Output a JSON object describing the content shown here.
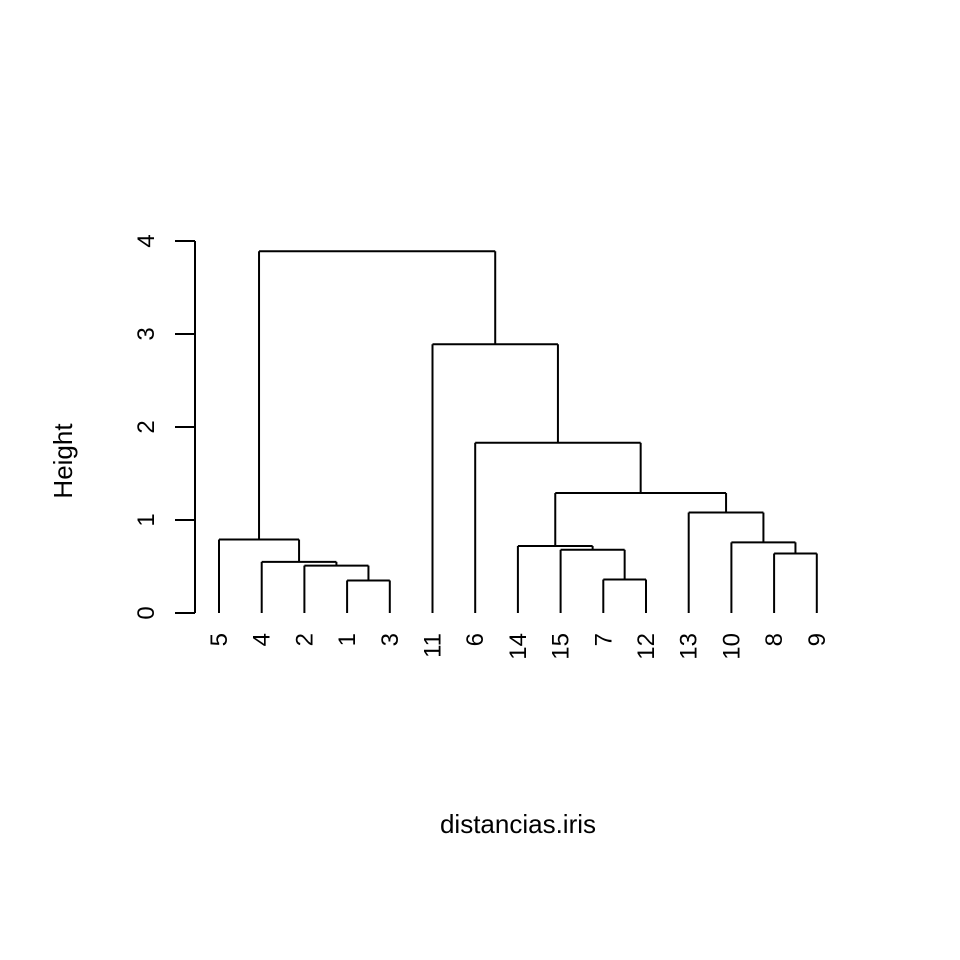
{
  "chart_data": {
    "type": "dendrogram",
    "title": "",
    "xlabel": "distancias.iris",
    "ylabel": "Height",
    "ylim": [
      0,
      4
    ],
    "y_ticks": [
      "0",
      "1",
      "2",
      "3",
      "4"
    ],
    "grid": false,
    "leaf_order": [
      "5",
      "4",
      "2",
      "1",
      "3",
      "11",
      "6",
      "14",
      "15",
      "7",
      "12",
      "13",
      "10",
      "8",
      "9"
    ],
    "merges": [
      {
        "id": "m1",
        "left": "1",
        "right": "3",
        "height": 0.35
      },
      {
        "id": "m2",
        "left": "7",
        "right": "12",
        "height": 0.36
      },
      {
        "id": "m3",
        "left": "2",
        "right": "m1",
        "height": 0.51
      },
      {
        "id": "m4",
        "left": "4",
        "right": "m3",
        "height": 0.55
      },
      {
        "id": "m5",
        "left": "8",
        "right": "9",
        "height": 0.64
      },
      {
        "id": "m6",
        "left": "15",
        "right": "m2",
        "height": 0.68
      },
      {
        "id": "m7",
        "left": "14",
        "right": "m6",
        "height": 0.72
      },
      {
        "id": "m8",
        "left": "10",
        "right": "m5",
        "height": 0.76
      },
      {
        "id": "m9",
        "left": "5",
        "right": "m4",
        "height": 0.79
      },
      {
        "id": "m10",
        "left": "13",
        "right": "m8",
        "height": 1.08
      },
      {
        "id": "m11",
        "left": "m7",
        "right": "m10",
        "height": 1.29
      },
      {
        "id": "m12",
        "left": "6",
        "right": "m11",
        "height": 1.83
      },
      {
        "id": "m13",
        "left": "11",
        "right": "m12",
        "height": 2.89
      },
      {
        "id": "m14",
        "left": "m9",
        "right": "m13",
        "height": 3.89
      }
    ]
  }
}
